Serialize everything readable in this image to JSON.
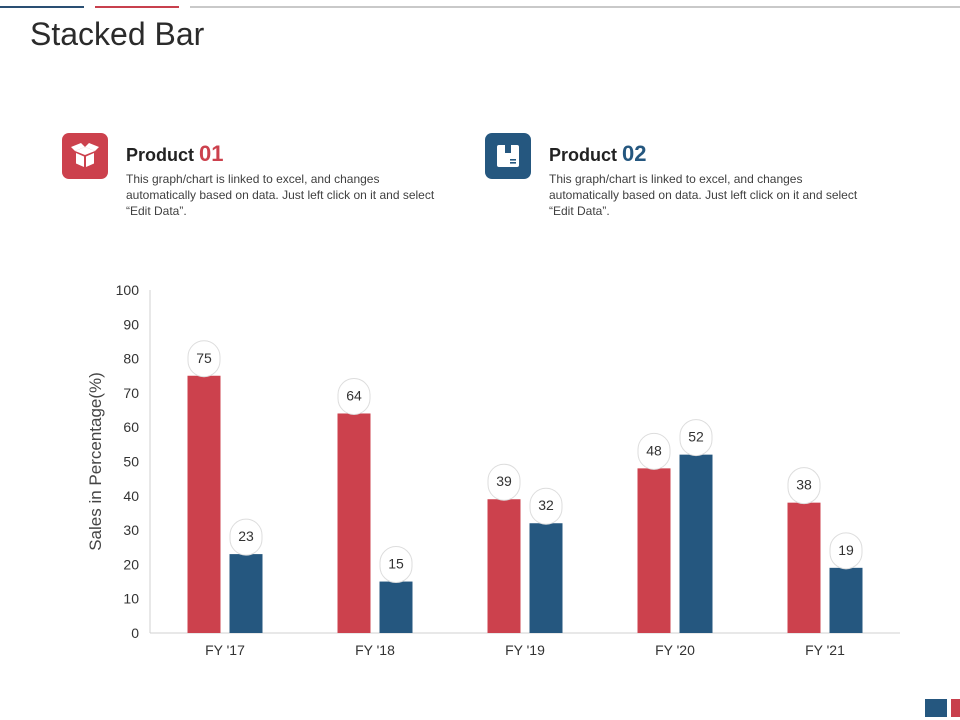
{
  "page": {
    "title": "Stacked Bar"
  },
  "colors": {
    "product1": "#cc414d",
    "product2": "#25577f",
    "axis": "#d0d0d0",
    "text": "#333333"
  },
  "products": [
    {
      "label": "Product",
      "number": "01",
      "icon": "box-open-icon",
      "description": "This graph/chart is linked to excel, and changes automatically based on data. Just left click on it and select “Edit Data”."
    },
    {
      "label": "Product",
      "number": "02",
      "icon": "package-icon",
      "description": "This graph/chart is linked to excel, and changes automatically based on data. Just left click on it and select “Edit Data”."
    }
  ],
  "chart_data": {
    "type": "bar",
    "title": "",
    "xlabel": "",
    "ylabel": "Sales in Percentage(%)",
    "categories": [
      "FY '17",
      "FY '18",
      "FY '19",
      "FY '20",
      "FY '21"
    ],
    "series": [
      {
        "name": "Product 01",
        "values": [
          75,
          64,
          39,
          48,
          38
        ]
      },
      {
        "name": "Product 02",
        "values": [
          23,
          15,
          32,
          52,
          19
        ]
      }
    ],
    "ylim": [
      0,
      100
    ],
    "yticks": [
      0,
      10,
      20,
      30,
      40,
      50,
      60,
      70,
      80,
      90,
      100
    ],
    "grid": false,
    "data_labels": true,
    "legend": "none"
  }
}
